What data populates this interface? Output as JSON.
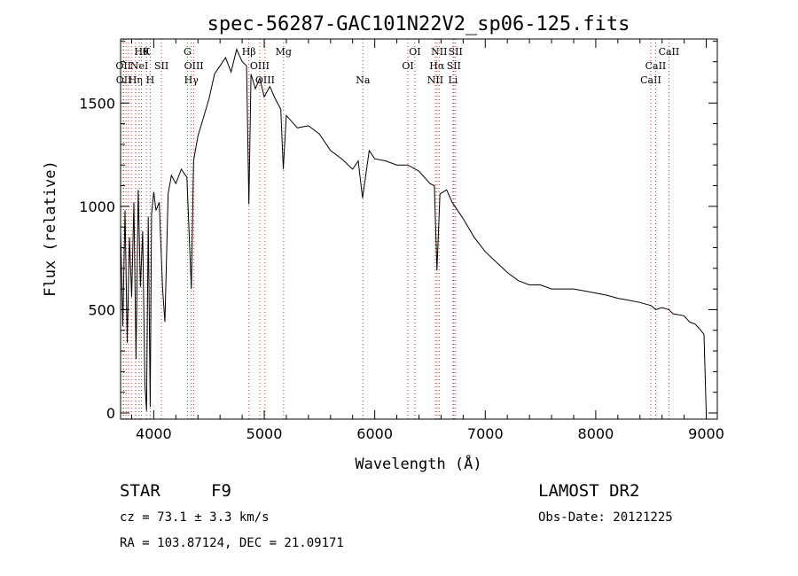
{
  "chart_data": {
    "type": "line",
    "title": "spec-56287-GAC101N22V2_sp06-125.fits",
    "xlabel": "Wavelength (Å)",
    "ylabel": "Flux (relative)",
    "xlim": [
      3700,
      9100
    ],
    "ylim": [
      -30,
      1810
    ],
    "x_ticks": [
      4000,
      5000,
      6000,
      7000,
      8000,
      9000
    ],
    "y_ticks": [
      0,
      500,
      1000,
      1500
    ],
    "grid": false,
    "series": [
      {
        "x": [
          3700,
          3720,
          3740,
          3760,
          3780,
          3800,
          3820,
          3840,
          3860,
          3880,
          3900,
          3920,
          3935,
          3950,
          3968,
          3980,
          4000,
          4020,
          4050,
          4080,
          4101,
          4130,
          4160,
          4200,
          4250,
          4300,
          4340,
          4360,
          4400,
          4450,
          4500,
          4550,
          4600,
          4650,
          4700,
          4750,
          4800,
          4840,
          4861,
          4880,
          4920,
          4960,
          5000,
          5050,
          5100,
          5150,
          5172,
          5200,
          5300,
          5400,
          5500,
          5600,
          5700,
          5800,
          5850,
          5890,
          5950,
          6000,
          6100,
          6200,
          6300,
          6400,
          6500,
          6540,
          6563,
          6590,
          6650,
          6700,
          6800,
          6900,
          7000,
          7100,
          7200,
          7300,
          7400,
          7500,
          7600,
          7700,
          7800,
          7900,
          8000,
          8100,
          8200,
          8300,
          8400,
          8500,
          8542,
          8600,
          8662,
          8700,
          8800,
          8850,
          8900,
          8950,
          8980,
          9000
        ],
        "y": [
          880,
          420,
          980,
          340,
          850,
          560,
          1020,
          260,
          1080,
          610,
          880,
          140,
          10,
          950,
          30,
          960,
          1070,
          980,
          1020,
          600,
          440,
          1060,
          1150,
          1110,
          1180,
          1140,
          600,
          1220,
          1340,
          1430,
          1520,
          1640,
          1680,
          1720,
          1650,
          1760,
          1700,
          1680,
          1010,
          1640,
          1570,
          1620,
          1530,
          1580,
          1520,
          1470,
          1180,
          1440,
          1380,
          1390,
          1350,
          1270,
          1230,
          1180,
          1220,
          1040,
          1270,
          1230,
          1220,
          1200,
          1200,
          1170,
          1110,
          1100,
          690,
          1060,
          1080,
          1020,
          940,
          850,
          780,
          730,
          680,
          640,
          620,
          620,
          600,
          600,
          600,
          590,
          580,
          570,
          555,
          545,
          535,
          520,
          500,
          510,
          500,
          480,
          470,
          440,
          430,
          400,
          380,
          0
        ]
      }
    ],
    "lines": [
      {
        "w": 3726,
        "label": "OII",
        "row": 1
      },
      {
        "w": 3729,
        "label": "OII",
        "row": 2
      },
      {
        "w": 3750,
        "label": "",
        "row": -1
      },
      {
        "w": 3771,
        "label": "",
        "row": -1
      },
      {
        "w": 3798,
        "label": "",
        "row": -1
      },
      {
        "w": 3835,
        "label": "Hη",
        "row": 2
      },
      {
        "w": 3869,
        "label": "NeI",
        "row": 1
      },
      {
        "w": 3889,
        "label": "Hθ",
        "row": 0
      },
      {
        "w": 3934,
        "label": "K",
        "row": 0
      },
      {
        "w": 3968,
        "label": "H",
        "row": 2
      },
      {
        "w": 4070,
        "label": "SII",
        "row": 1
      },
      {
        "w": 4305,
        "label": "G",
        "row": 0
      },
      {
        "w": 4340,
        "label": "Hγ",
        "row": 2
      },
      {
        "w": 4363,
        "label": "OIII",
        "row": 1
      },
      {
        "w": 4861,
        "label": "Hβ",
        "row": 0
      },
      {
        "w": 4959,
        "label": "OIII",
        "row": 1
      },
      {
        "w": 5007,
        "label": "OIII",
        "row": 2
      },
      {
        "w": 5175,
        "label": "Mg",
        "row": 0
      },
      {
        "w": 5893,
        "label": "Na",
        "row": 2
      },
      {
        "w": 6300,
        "label": "OI",
        "row": 1
      },
      {
        "w": 6363,
        "label": "OI",
        "row": 0
      },
      {
        "w": 6548,
        "label": "NII",
        "row": 2
      },
      {
        "w": 6563,
        "label": "Hα",
        "row": 1
      },
      {
        "w": 6583,
        "label": "NII",
        "row": 0
      },
      {
        "w": 6708,
        "label": "Li",
        "row": 2
      },
      {
        "w": 6716,
        "label": "SII",
        "row": 1
      },
      {
        "w": 6731,
        "label": "SII",
        "row": 0
      },
      {
        "w": 8498,
        "label": "CaII",
        "row": 2
      },
      {
        "w": 8542,
        "label": "CaII",
        "row": 1
      },
      {
        "w": 8662,
        "label": "CaII",
        "row": 0
      }
    ]
  },
  "info": {
    "class_label": "STAR",
    "subclass": "F9",
    "survey": "LAMOST DR2",
    "cz": "cz = 73.1 ± 3.3 km/s",
    "obs_date": "Obs-Date: 20121225",
    "coords": "RA = 103.87124, DEC =  21.09171"
  }
}
